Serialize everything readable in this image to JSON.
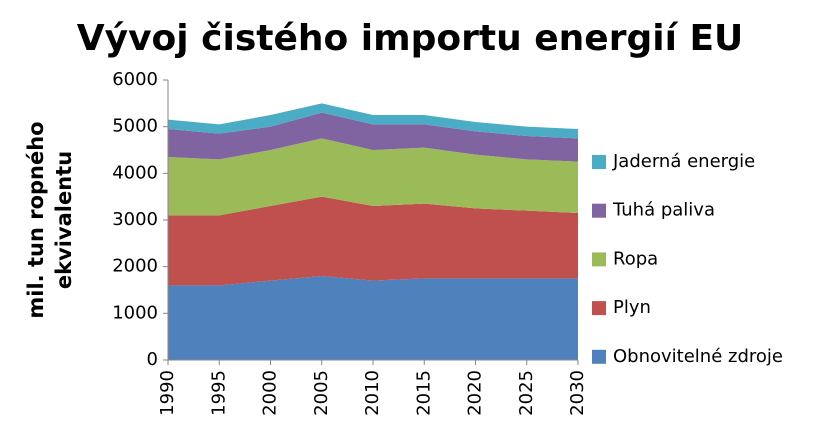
{
  "chart_data": {
    "type": "stacked_area",
    "title": "Vývoj čistého importu energií EU",
    "ylabel": [
      "mil. tun ropného",
      "ekvivalentu"
    ],
    "x": [
      1990,
      1995,
      2000,
      2005,
      2010,
      2015,
      2020,
      2025,
      2030
    ],
    "xlim": [
      1990,
      2030
    ],
    "xticks": [
      1990,
      1995,
      2000,
      2005,
      2010,
      2015,
      2020,
      2025,
      2030
    ],
    "ylim": [
      0,
      6000
    ],
    "yticks": [
      0,
      1000,
      2000,
      3000,
      4000,
      5000,
      6000
    ],
    "legend": "right",
    "series": [
      {
        "name": "Obnovitelné zdroje",
        "color": "#4f81bd",
        "values": [
          1600,
          1600,
          1700,
          1800,
          1700,
          1750,
          1750,
          1750,
          1750
        ]
      },
      {
        "name": "Plyn",
        "color": "#c0504d",
        "values": [
          1500,
          1500,
          1600,
          1700,
          1600,
          1600,
          1500,
          1450,
          1400
        ]
      },
      {
        "name": "Ropa",
        "color": "#9bbb59",
        "values": [
          1250,
          1200,
          1200,
          1250,
          1200,
          1200,
          1150,
          1100,
          1100
        ]
      },
      {
        "name": "Tuhá paliva",
        "color": "#8064a2",
        "values": [
          600,
          550,
          500,
          550,
          550,
          500,
          500,
          500,
          500
        ]
      },
      {
        "name": "Jaderná energie",
        "color": "#4bacc6",
        "values": [
          200,
          200,
          250,
          200,
          200,
          200,
          200,
          200,
          200
        ]
      }
    ]
  }
}
